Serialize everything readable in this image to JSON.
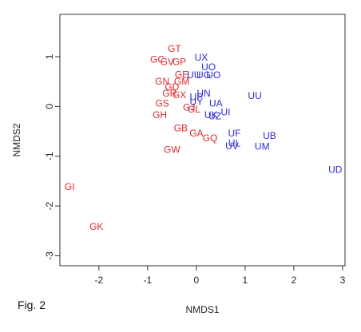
{
  "caption": "Fig. 2",
  "chart_data": {
    "type": "scatter",
    "title": "",
    "xlabel": "NMDS1",
    "ylabel": "NMDS2",
    "xlim": [
      -2.8,
      3.05
    ],
    "ylim": [
      -3.2,
      1.85
    ],
    "xticks": [
      -2,
      -1,
      0,
      1,
      2,
      3
    ],
    "yticks": [
      -3,
      -2,
      -1,
      0,
      1
    ],
    "grid": false,
    "legend": "none",
    "series": [
      {
        "color": "#e0282d",
        "points": [
          {
            "label": "GT",
            "x": -0.45,
            "y": 1.15
          },
          {
            "label": "GC",
            "x": -0.8,
            "y": 0.93
          },
          {
            "label": "GV",
            "x": -0.6,
            "y": 0.88
          },
          {
            "label": "GP",
            "x": -0.35,
            "y": 0.88
          },
          {
            "label": "GE",
            "x": -0.3,
            "y": 0.63
          },
          {
            "label": "GN",
            "x": -0.7,
            "y": 0.49
          },
          {
            "label": "GM",
            "x": -0.3,
            "y": 0.49
          },
          {
            "label": "GD",
            "x": -0.5,
            "y": 0.38
          },
          {
            "label": "GR",
            "x": -0.55,
            "y": 0.25
          },
          {
            "label": "GX",
            "x": -0.35,
            "y": 0.22
          },
          {
            "label": "GS",
            "x": -0.7,
            "y": 0.05
          },
          {
            "label": "GJ",
            "x": -0.15,
            "y": -0.03
          },
          {
            "label": "GL",
            "x": -0.05,
            "y": -0.07
          },
          {
            "label": "GH",
            "x": -0.75,
            "y": -0.18
          },
          {
            "label": "GB",
            "x": -0.32,
            "y": -0.45
          },
          {
            "label": "GA",
            "x": 0.0,
            "y": -0.55
          },
          {
            "label": "GQ",
            "x": 0.28,
            "y": -0.65
          },
          {
            "label": "GW",
            "x": -0.5,
            "y": -0.88
          },
          {
            "label": "GI",
            "x": -2.6,
            "y": -1.63
          },
          {
            "label": "GK",
            "x": -2.05,
            "y": -2.43
          }
        ]
      },
      {
        "color": "#2a2ad4",
        "points": [
          {
            "label": "UX",
            "x": 0.1,
            "y": 0.97
          },
          {
            "label": "UO",
            "x": 0.25,
            "y": 0.78
          },
          {
            "label": "UU",
            "x": -0.05,
            "y": 0.62
          },
          {
            "label": "UG",
            "x": 0.15,
            "y": 0.62
          },
          {
            "label": "UO",
            "x": 0.35,
            "y": 0.62
          },
          {
            "label": "UN",
            "x": 0.15,
            "y": 0.25
          },
          {
            "label": "UP",
            "x": 0.0,
            "y": 0.18
          },
          {
            "label": "UY",
            "x": 0.0,
            "y": 0.08
          },
          {
            "label": "UA",
            "x": 0.4,
            "y": 0.05
          },
          {
            "label": "UU",
            "x": 1.2,
            "y": 0.2
          },
          {
            "label": "UK",
            "x": 0.3,
            "y": -0.18
          },
          {
            "label": "UZ",
            "x": 0.38,
            "y": -0.21
          },
          {
            "label": "UI",
            "x": 0.6,
            "y": -0.13
          },
          {
            "label": "UF",
            "x": 0.78,
            "y": -0.55
          },
          {
            "label": "UB",
            "x": 1.5,
            "y": -0.6
          },
          {
            "label": "UL",
            "x": 0.78,
            "y": -0.75
          },
          {
            "label": "UV",
            "x": 0.73,
            "y": -0.81
          },
          {
            "label": "UM",
            "x": 1.35,
            "y": -0.82
          },
          {
            "label": "UD",
            "x": 2.85,
            "y": -1.28
          }
        ]
      }
    ]
  }
}
